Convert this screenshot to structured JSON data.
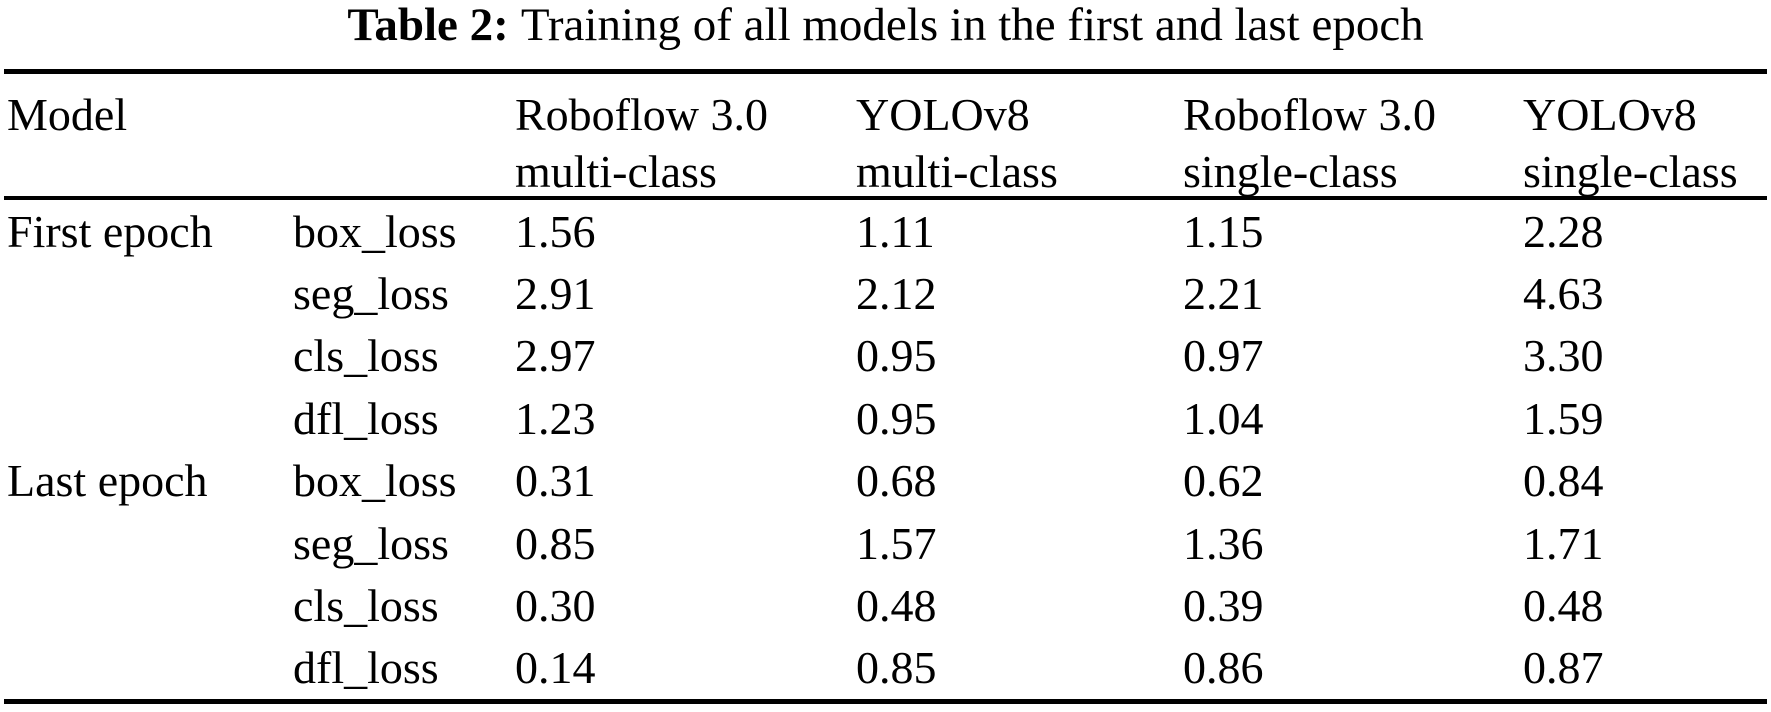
{
  "title": {
    "label": "Table 2:",
    "text": "Training of all models in the first and last epoch"
  },
  "header": {
    "model_label": "Model",
    "columns": [
      {
        "line1": "Roboflow 3.0",
        "line2": "multi-class"
      },
      {
        "line1": "YOLOv8",
        "line2": "multi-class"
      },
      {
        "line1": "Roboflow 3.0",
        "line2": "single-class"
      },
      {
        "line1": "YOLOv8",
        "line2": "single-class"
      }
    ]
  },
  "body": {
    "groups": [
      {
        "epoch": "First epoch",
        "rows": [
          {
            "metric": "box_loss",
            "values": [
              "1.56",
              "1.11",
              "1.15",
              "2.28"
            ]
          },
          {
            "metric": "seg_loss",
            "values": [
              "2.91",
              "2.12",
              "2.21",
              "4.63"
            ]
          },
          {
            "metric": "cls_loss",
            "values": [
              "2.97",
              "0.95",
              "0.97",
              "3.30"
            ]
          },
          {
            "metric": "dfl_loss",
            "values": [
              "1.23",
              "0.95",
              "1.04",
              "1.59"
            ]
          }
        ]
      },
      {
        "epoch": "Last epoch",
        "rows": [
          {
            "metric": "box_loss",
            "values": [
              "0.31",
              "0.68",
              "0.62",
              "0.84"
            ]
          },
          {
            "metric": "seg_loss",
            "values": [
              "0.85",
              "1.57",
              "1.36",
              "1.71"
            ]
          },
          {
            "metric": "cls_loss",
            "values": [
              "0.30",
              "0.48",
              "0.39",
              "0.48"
            ]
          },
          {
            "metric": "dfl_loss",
            "values": [
              "0.14",
              "0.85",
              "0.86",
              "0.87"
            ]
          }
        ]
      }
    ]
  },
  "colors": {
    "text": "#000000",
    "background": "#ffffff",
    "rule": "#000000"
  }
}
